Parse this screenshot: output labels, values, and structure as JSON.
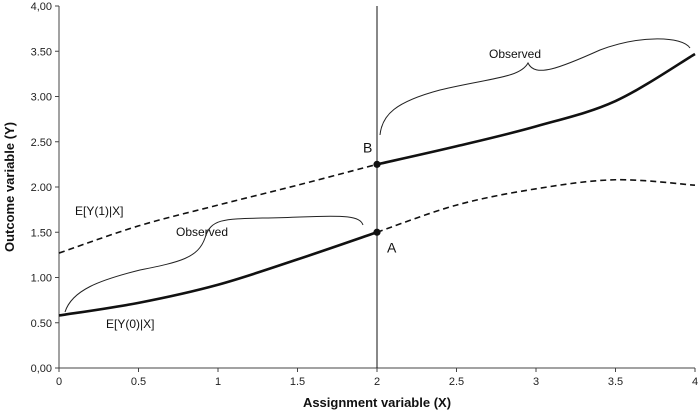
{
  "chart_data": {
    "type": "line",
    "xlabel": "Assignment variable (X)",
    "ylabel": "Outcome variable (Y)",
    "xlim": [
      0,
      4
    ],
    "ylim": [
      0,
      4
    ],
    "x_ticks": [
      "0",
      "0.5",
      "1",
      "1.5",
      "2",
      "2.5",
      "3",
      "3.5",
      "4"
    ],
    "y_ticks": [
      "0,00",
      "0.50",
      "1.00",
      "1.50",
      "2.00",
      "2.50",
      "3.00",
      "3.50",
      "4,00"
    ],
    "cutoff": 2,
    "series": [
      {
        "name": "E[Y(0)|X]",
        "x": [
          0,
          0.5,
          1,
          1.5,
          2,
          2.5,
          3,
          3.5,
          4
        ],
        "y": [
          0.58,
          0.72,
          0.92,
          1.2,
          1.5,
          1.8,
          1.98,
          2.08,
          2.02
        ],
        "observed_range": [
          0,
          2
        ],
        "style_observed": "solid",
        "style_unobserved": "dashed"
      },
      {
        "name": "E[Y(1)|X]",
        "x": [
          0,
          0.5,
          1,
          1.5,
          2,
          2.5,
          3,
          3.5,
          4
        ],
        "y": [
          1.27,
          1.57,
          1.8,
          2.02,
          2.25,
          2.45,
          2.67,
          2.95,
          3.47
        ],
        "observed_range": [
          2,
          4
        ],
        "style_observed": "solid",
        "style_unobserved": "dashed"
      }
    ],
    "points": [
      {
        "label": "A",
        "x": 2,
        "y": 1.5
      },
      {
        "label": "B",
        "x": 2,
        "y": 2.25
      }
    ],
    "annotations": {
      "series_label_y1": "E[Y(1)|X]",
      "series_label_y0": "E[Y(0)|X]",
      "observed_left": "Observed",
      "observed_right": "Observed"
    }
  }
}
